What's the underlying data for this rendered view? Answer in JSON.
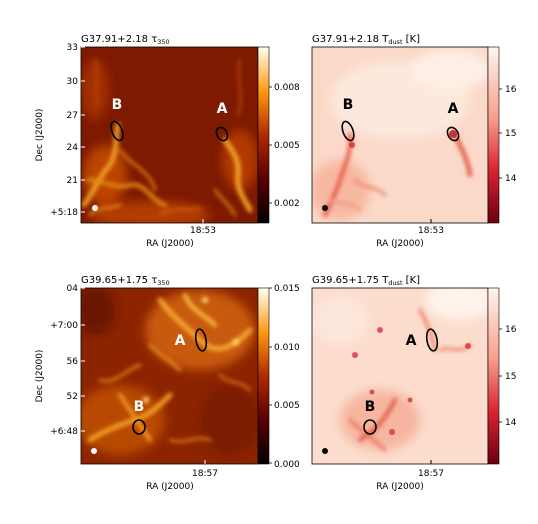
{
  "chart_data": [
    {
      "type": "heatmap",
      "title": "G37.91+2.18 τ",
      "title_sub": "350",
      "colormap": "afmhot",
      "xlabel": "RA (J2000)",
      "ylabel": "Dec (J2000)",
      "x_ticks": [
        "18:53"
      ],
      "y_ticks": [
        "33",
        "30",
        "27",
        "24",
        "21",
        "+5:18"
      ],
      "colorbar_ticks": [
        "0.008",
        "0.005",
        "0.002"
      ],
      "sources": [
        {
          "label": "B"
        },
        {
          "label": "A"
        }
      ]
    },
    {
      "type": "heatmap",
      "title": "G37.91+2.18 T",
      "title_sub": "dust",
      "title_unit": " [K]",
      "colormap": "reds",
      "xlabel": "RA (J2000)",
      "x_ticks": [
        "18:53"
      ],
      "colorbar_ticks": [
        "16",
        "15",
        "14"
      ],
      "sources": [
        {
          "label": "B"
        },
        {
          "label": "A"
        }
      ]
    },
    {
      "type": "heatmap",
      "title": "G39.65+1.75 τ",
      "title_sub": "350",
      "colormap": "afmhot",
      "xlabel": "RA (J2000)",
      "ylabel": "Dec (J2000)",
      "x_ticks": [
        "18:57"
      ],
      "y_ticks": [
        "04",
        "+7:00",
        "56",
        "52",
        "+6:48"
      ],
      "colorbar_ticks": [
        "0.015",
        "0.010",
        "0.005",
        "0.000"
      ],
      "sources": [
        {
          "label": "A"
        },
        {
          "label": "B"
        }
      ]
    },
    {
      "type": "heatmap",
      "title": "G39.65+1.75 T",
      "title_sub": "dust",
      "title_unit": " [K]",
      "colormap": "reds",
      "xlabel": "RA (J2000)",
      "x_ticks": [
        "18:57"
      ],
      "colorbar_ticks": [
        "16",
        "15",
        "14"
      ],
      "sources": [
        {
          "label": "A"
        },
        {
          "label": "B"
        }
      ]
    }
  ]
}
